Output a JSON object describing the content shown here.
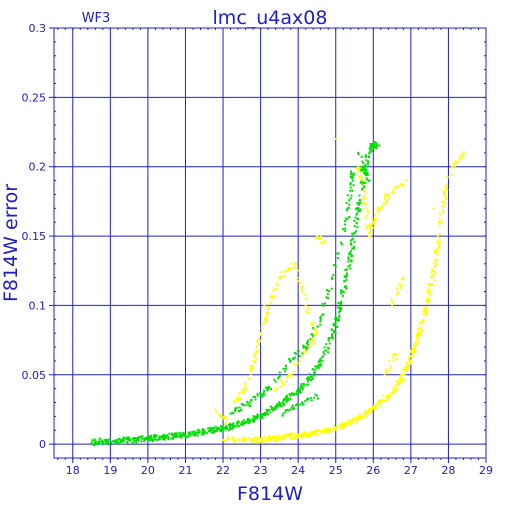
{
  "chart_data": {
    "type": "scatter",
    "title": "lmc_u4ax08",
    "corner_label": "WF3",
    "xlabel": "F814W",
    "ylabel": "F814W error",
    "xlim": [
      17.5,
      29
    ],
    "ylim": [
      -0.01,
      0.3
    ],
    "x_ticks": [
      18,
      19,
      20,
      21,
      22,
      23,
      24,
      25,
      26,
      27,
      28,
      29
    ],
    "y_ticks": [
      0,
      0.05,
      0.1,
      0.15,
      0.2,
      0.25,
      0.3
    ],
    "grid": true,
    "series": [
      {
        "color": "#00e000",
        "points": [
          [
            18.5,
            0.001
          ],
          [
            18.7,
            0.002
          ],
          [
            18.9,
            0.002
          ],
          [
            19.1,
            0.002
          ],
          [
            19.3,
            0.003
          ],
          [
            19.5,
            0.003
          ],
          [
            19.7,
            0.003
          ],
          [
            19.9,
            0.004
          ],
          [
            20.1,
            0.004
          ],
          [
            20.3,
            0.005
          ],
          [
            20.5,
            0.005
          ],
          [
            20.7,
            0.006
          ],
          [
            20.9,
            0.006
          ],
          [
            21.1,
            0.007
          ],
          [
            21.3,
            0.008
          ],
          [
            21.5,
            0.009
          ],
          [
            21.7,
            0.01
          ],
          [
            21.9,
            0.011
          ],
          [
            22.1,
            0.012
          ],
          [
            22.3,
            0.013
          ],
          [
            22.5,
            0.015
          ],
          [
            22.7,
            0.017
          ],
          [
            22.9,
            0.019
          ],
          [
            23.1,
            0.022
          ],
          [
            23.3,
            0.025
          ],
          [
            23.5,
            0.028
          ],
          [
            23.7,
            0.032
          ],
          [
            23.9,
            0.036
          ],
          [
            24.1,
            0.041
          ],
          [
            24.3,
            0.047
          ],
          [
            24.5,
            0.055
          ],
          [
            24.7,
            0.065
          ],
          [
            24.9,
            0.078
          ],
          [
            25.0,
            0.087
          ],
          [
            25.1,
            0.098
          ],
          [
            25.2,
            0.11
          ],
          [
            25.3,
            0.123
          ],
          [
            25.4,
            0.137
          ],
          [
            25.5,
            0.152
          ],
          [
            25.6,
            0.168
          ],
          [
            25.7,
            0.184
          ],
          [
            25.8,
            0.2
          ],
          [
            25.9,
            0.213
          ],
          [
            26.0,
            0.216
          ],
          [
            26.1,
            0.215
          ],
          [
            25.5,
            0.2
          ],
          [
            25.4,
            0.185
          ],
          [
            25.3,
            0.162
          ],
          [
            24.9,
            0.12
          ],
          [
            24.6,
            0.09
          ],
          [
            24.2,
            0.07
          ],
          [
            23.8,
            0.06
          ],
          [
            23.4,
            0.045
          ],
          [
            23.0,
            0.035
          ],
          [
            22.6,
            0.028
          ],
          [
            22.2,
            0.022
          ],
          [
            24.5,
            0.035
          ],
          [
            24.0,
            0.028
          ],
          [
            23.6,
            0.022
          ],
          [
            25.7,
            0.2
          ],
          [
            25.9,
            0.19
          ],
          [
            25.6,
            0.21
          ]
        ]
      },
      {
        "color": "#ffff00",
        "points": [
          [
            22.0,
            0.003
          ],
          [
            22.4,
            0.003
          ],
          [
            22.8,
            0.003
          ],
          [
            23.0,
            0.003
          ],
          [
            23.2,
            0.004
          ],
          [
            23.4,
            0.004
          ],
          [
            23.6,
            0.005
          ],
          [
            23.8,
            0.006
          ],
          [
            24.0,
            0.006
          ],
          [
            24.2,
            0.007
          ],
          [
            24.4,
            0.008
          ],
          [
            24.6,
            0.009
          ],
          [
            24.8,
            0.01
          ],
          [
            25.0,
            0.012
          ],
          [
            25.2,
            0.014
          ],
          [
            25.4,
            0.016
          ],
          [
            25.6,
            0.019
          ],
          [
            25.8,
            0.022
          ],
          [
            26.0,
            0.026
          ],
          [
            26.2,
            0.03
          ],
          [
            26.4,
            0.035
          ],
          [
            26.6,
            0.04
          ],
          [
            26.7,
            0.045
          ],
          [
            26.8,
            0.05
          ],
          [
            26.9,
            0.056
          ],
          [
            27.0,
            0.063
          ],
          [
            27.1,
            0.07
          ],
          [
            27.2,
            0.078
          ],
          [
            27.3,
            0.088
          ],
          [
            27.4,
            0.098
          ],
          [
            27.5,
            0.11
          ],
          [
            27.6,
            0.125
          ],
          [
            27.7,
            0.14
          ],
          [
            27.8,
            0.16
          ],
          [
            27.9,
            0.18
          ],
          [
            28.1,
            0.2
          ],
          [
            28.4,
            0.21
          ],
          [
            25.6,
            0.2
          ],
          [
            25.7,
            0.19
          ],
          [
            25.8,
            0.17
          ],
          [
            25.9,
            0.15
          ],
          [
            26.0,
            0.16
          ],
          [
            26.2,
            0.17
          ],
          [
            26.4,
            0.18
          ],
          [
            26.9,
            0.19
          ],
          [
            25.0,
            0.22
          ],
          [
            22.3,
            0.03
          ],
          [
            22.6,
            0.04
          ],
          [
            22.8,
            0.06
          ],
          [
            23.0,
            0.08
          ],
          [
            23.2,
            0.095
          ],
          [
            23.5,
            0.12
          ],
          [
            23.9,
            0.13
          ],
          [
            24.2,
            0.1
          ],
          [
            24.5,
            0.08
          ],
          [
            24.3,
            0.07
          ],
          [
            23.8,
            0.05
          ],
          [
            23.4,
            0.04
          ],
          [
            24.7,
            0.145
          ],
          [
            24.5,
            0.15
          ],
          [
            26.5,
            0.1
          ],
          [
            26.8,
            0.12
          ],
          [
            27.6,
            0.17
          ],
          [
            21.8,
            0.025
          ],
          [
            22.1,
            0.016
          ],
          [
            23.1,
            0.1
          ],
          [
            24.1,
            0.11
          ],
          [
            22.9,
            0.07
          ],
          [
            26.3,
            0.05
          ],
          [
            26.6,
            0.065
          ]
        ]
      }
    ]
  }
}
